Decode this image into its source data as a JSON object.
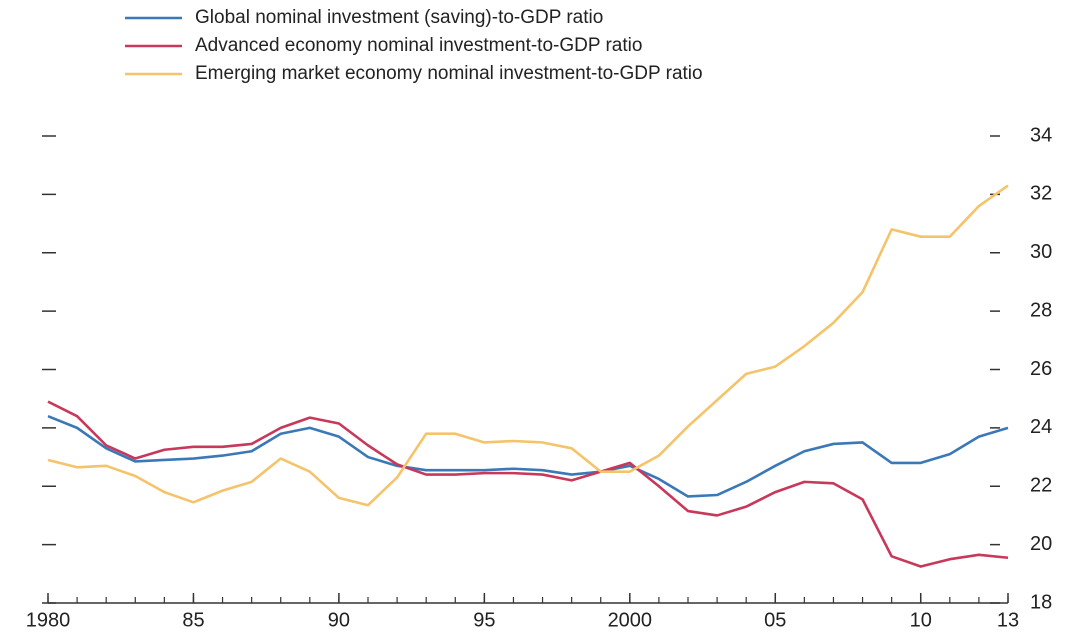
{
  "chart_data": {
    "type": "line",
    "x": [
      1980,
      1981,
      1982,
      1983,
      1984,
      1985,
      1986,
      1987,
      1988,
      1989,
      1990,
      1991,
      1992,
      1993,
      1994,
      1995,
      1996,
      1997,
      1998,
      1999,
      2000,
      2001,
      2002,
      2003,
      2004,
      2005,
      2006,
      2007,
      2008,
      2009,
      2010,
      2011,
      2012,
      2013
    ],
    "series": [
      {
        "name": "Global nominal investment (saving)-to-GDP ratio",
        "color": "#3b78b8",
        "values": [
          24.4,
          24.0,
          23.3,
          22.85,
          22.9,
          22.95,
          23.05,
          23.2,
          23.8,
          24.0,
          23.7,
          23.0,
          22.7,
          22.55,
          22.55,
          22.55,
          22.6,
          22.55,
          22.4,
          22.5,
          22.7,
          22.25,
          21.65,
          21.7,
          22.15,
          22.7,
          23.2,
          23.45,
          23.5,
          22.8,
          22.8,
          23.1,
          23.7,
          24.0
        ]
      },
      {
        "name": "Advanced economy nominal investment-to-GDP ratio",
        "color": "#c8385a",
        "values": [
          24.9,
          24.4,
          23.4,
          22.95,
          23.25,
          23.35,
          23.35,
          23.45,
          24.0,
          24.35,
          24.15,
          23.4,
          22.75,
          22.4,
          22.4,
          22.45,
          22.45,
          22.4,
          22.2,
          22.5,
          22.8,
          22.0,
          21.15,
          21.0,
          21.3,
          21.8,
          22.15,
          22.1,
          21.55,
          19.6,
          19.25,
          19.5,
          19.65,
          19.55
        ]
      },
      {
        "name": "Emerging market economy nominal investment-to-GDP ratio",
        "color": "#f5c36a",
        "values": [
          22.9,
          22.65,
          22.7,
          22.35,
          21.8,
          21.45,
          21.85,
          22.15,
          22.95,
          22.5,
          21.6,
          21.35,
          22.3,
          23.8,
          23.8,
          23.5,
          23.55,
          23.5,
          23.3,
          22.5,
          22.5,
          23.05,
          24.05,
          24.95,
          25.85,
          26.1,
          26.8,
          27.6,
          28.65,
          30.8,
          30.55,
          30.55,
          31.6,
          32.3
        ]
      }
    ],
    "xlim": [
      1980,
      2013
    ],
    "xticks": [
      1980,
      {
        "value": 1985,
        "label": "85"
      },
      {
        "value": 1990,
        "label": "90"
      },
      {
        "value": 1995,
        "label": "95"
      },
      2000,
      {
        "value": 2005,
        "label": "05"
      },
      {
        "value": 2010,
        "label": "10"
      },
      {
        "value": 2013,
        "label": "13"
      }
    ],
    "ylim": [
      18,
      34
    ],
    "yticks": [
      18,
      20,
      22,
      24,
      26,
      28,
      30,
      32,
      34
    ]
  }
}
